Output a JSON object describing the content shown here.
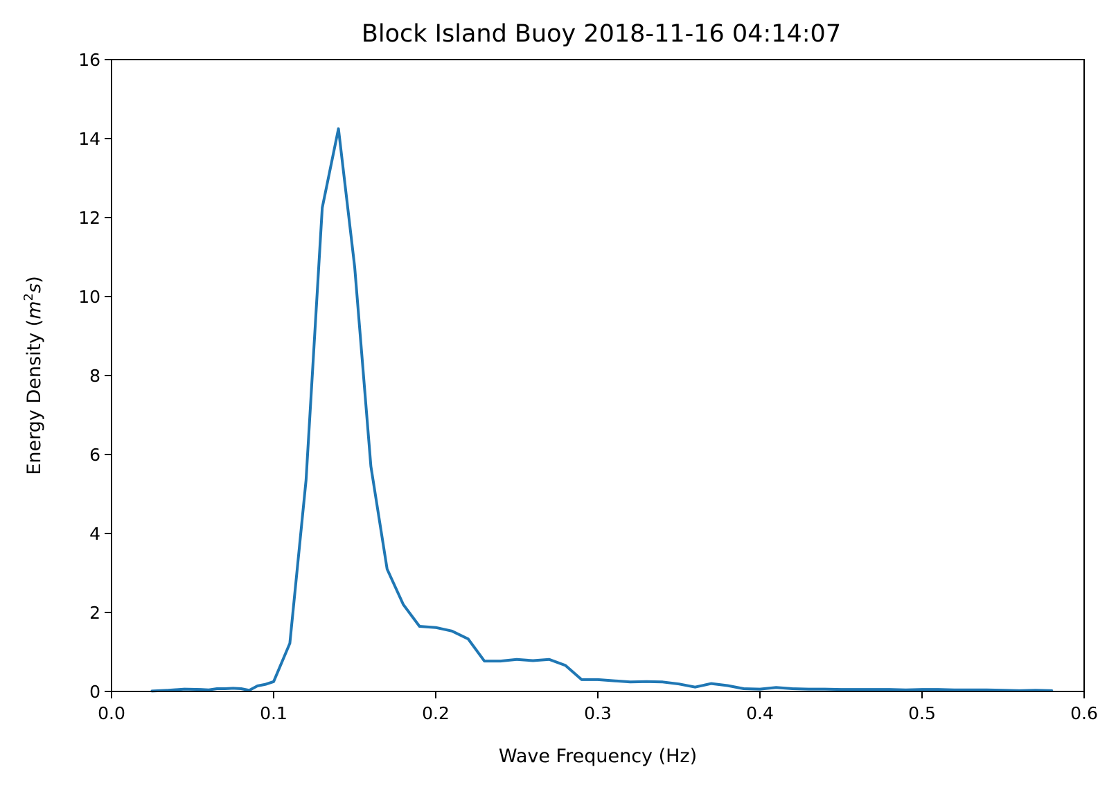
{
  "chart_data": {
    "type": "line",
    "title": "Block Island Buoy 2018-11-16 04:14:07",
    "xlabel": "Wave Frequency (Hz)",
    "ylabel_prefix": "Energy Density (",
    "ylabel_unit_base": "m",
    "ylabel_unit_exp": "2",
    "ylabel_unit_tail": "s",
    "ylabel_suffix": ")",
    "xlim": [
      0.0,
      0.6
    ],
    "ylim": [
      0,
      16
    ],
    "xticks": [
      "0.0",
      "0.1",
      "0.2",
      "0.3",
      "0.4",
      "0.5",
      "0.6"
    ],
    "yticks": [
      "0",
      "2",
      "4",
      "6",
      "8",
      "10",
      "12",
      "14",
      "16"
    ],
    "grid": false,
    "color": "#1f77b4",
    "series": [
      {
        "x": [
          0.025,
          0.035,
          0.045,
          0.055,
          0.06,
          0.065,
          0.07,
          0.075,
          0.08,
          0.085,
          0.09,
          0.095,
          0.1,
          0.11,
          0.12,
          0.13,
          0.14,
          0.15,
          0.16,
          0.17,
          0.18,
          0.19,
          0.2,
          0.21,
          0.22,
          0.23,
          0.24,
          0.25,
          0.26,
          0.27,
          0.28,
          0.29,
          0.3,
          0.31,
          0.32,
          0.33,
          0.34,
          0.35,
          0.36,
          0.37,
          0.38,
          0.39,
          0.4,
          0.41,
          0.42,
          0.43,
          0.44,
          0.45,
          0.46,
          0.47,
          0.48,
          0.49,
          0.5,
          0.51,
          0.52,
          0.53,
          0.54,
          0.55,
          0.56,
          0.57,
          0.58
        ],
        "y": [
          0.01,
          0.03,
          0.06,
          0.05,
          0.04,
          0.07,
          0.07,
          0.08,
          0.07,
          0.03,
          0.14,
          0.18,
          0.25,
          1.22,
          5.35,
          12.25,
          14.25,
          10.75,
          5.7,
          3.1,
          2.2,
          1.65,
          1.62,
          1.53,
          1.33,
          0.77,
          0.77,
          0.81,
          0.78,
          0.81,
          0.66,
          0.3,
          0.3,
          0.27,
          0.24,
          0.25,
          0.24,
          0.19,
          0.11,
          0.2,
          0.15,
          0.07,
          0.06,
          0.1,
          0.07,
          0.06,
          0.06,
          0.05,
          0.05,
          0.05,
          0.05,
          0.04,
          0.05,
          0.05,
          0.04,
          0.04,
          0.04,
          0.03,
          0.02,
          0.03,
          0.02
        ]
      }
    ]
  }
}
